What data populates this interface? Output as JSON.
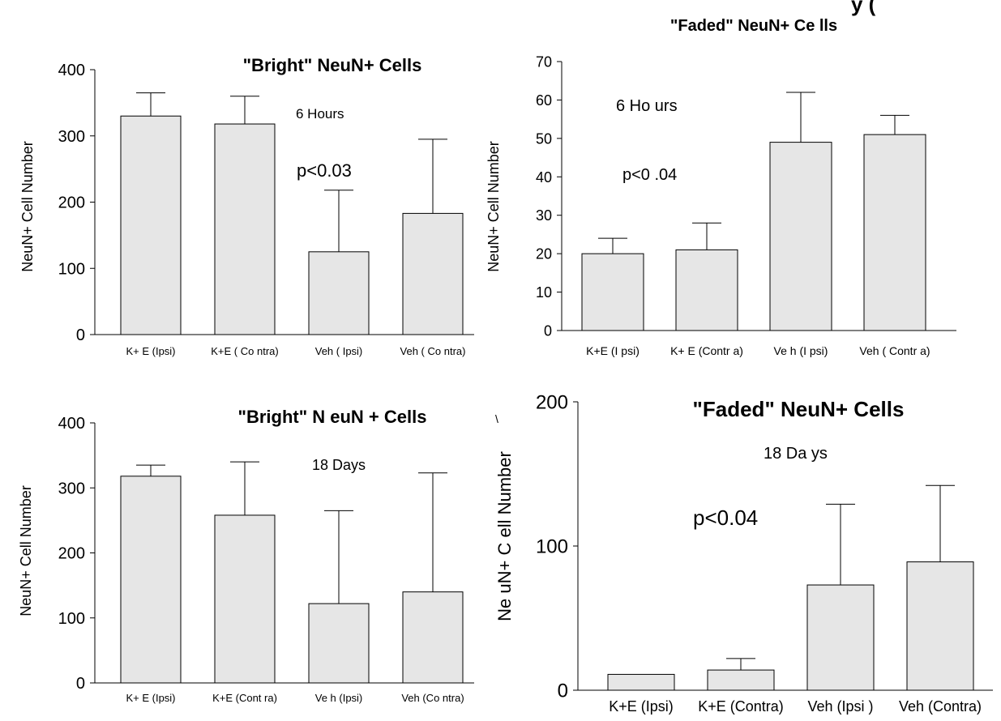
{
  "header_fragment": "y  (",
  "stray_mark": "\\",
  "chart_data": [
    {
      "id": "bright-6h",
      "type": "bar",
      "title": "\"Bright\" NeuN+ Cells",
      "subtitle": "6 Hours",
      "annotation": "p<0.03",
      "xlabel": "",
      "ylabel": "NeuN+ Cell Number",
      "ylim": [
        0,
        400
      ],
      "yticks": [
        "0",
        "100",
        "200",
        "300",
        "400"
      ],
      "categories": [
        "K+ E (Ipsi)",
        "K+E ( Co ntra)",
        "Veh ( Ipsi)",
        "Veh ( Co ntra)"
      ],
      "values": [
        330,
        318,
        125,
        183
      ],
      "errors": [
        35,
        42,
        93,
        112
      ],
      "bar_color": "#e6e6e6",
      "grid": false
    },
    {
      "id": "faded-6h",
      "type": "bar",
      "title": "\"Faded\" NeuN+ Ce lls",
      "subtitle": "6 Ho urs",
      "annotation": "p<0 .04",
      "xlabel": "",
      "ylabel": "NeuN+ Cell Number",
      "ylim": [
        0,
        70
      ],
      "yticks": [
        "0",
        "10",
        "20",
        "30",
        "40",
        "50",
        "60",
        "70"
      ],
      "categories": [
        "K+E (I psi)",
        "K+ E (Contr a)",
        "Ve h (I psi)",
        "Veh ( Contr a)"
      ],
      "values": [
        20,
        21,
        49,
        51
      ],
      "errors": [
        4,
        7,
        13,
        5
      ],
      "bar_color": "#e6e6e6",
      "grid": false
    },
    {
      "id": "bright-18d",
      "type": "bar",
      "title": "\"Bright\" N euN + Cells",
      "subtitle": "18 Days",
      "xlabel": "",
      "ylabel": "NeuN+ Cell Number",
      "ylim": [
        0,
        400
      ],
      "yticks": [
        "0",
        "100",
        "200",
        "300",
        "400"
      ],
      "categories": [
        "K+ E (Ipsi)",
        "K+E (Cont ra)",
        "Ve h (Ipsi)",
        "Veh (Co ntra)"
      ],
      "values": [
        318,
        258,
        122,
        140
      ],
      "errors": [
        17,
        82,
        143,
        183
      ],
      "bar_color": "#e6e6e6",
      "grid": false
    },
    {
      "id": "faded-18d",
      "type": "bar",
      "title": "\"Faded\" NeuN+ Cells",
      "subtitle": "18 Da ys",
      "annotation": "p<0.04",
      "xlabel": "",
      "ylabel": "Ne uN+ C ell Number",
      "ylim": [
        0,
        200
      ],
      "yticks": [
        "0",
        "100",
        "200"
      ],
      "categories": [
        "K+E (Ipsi)",
        "K+E (Contra)",
        "Veh (Ipsi )",
        "Veh (Contra)"
      ],
      "values": [
        11,
        14,
        73,
        89
      ],
      "errors": [
        0,
        8,
        56,
        53
      ],
      "bar_color": "#e6e6e6",
      "grid": false
    }
  ]
}
